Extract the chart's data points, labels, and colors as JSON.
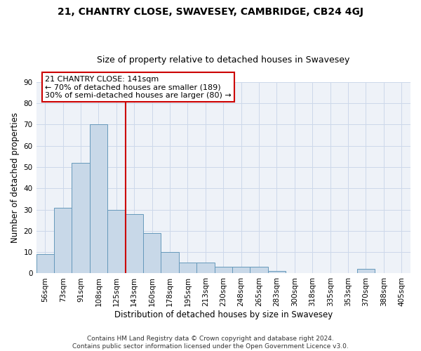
{
  "title1": "21, CHANTRY CLOSE, SWAVESEY, CAMBRIDGE, CB24 4GJ",
  "title2": "Size of property relative to detached houses in Swavesey",
  "xlabel": "Distribution of detached houses by size in Swavesey",
  "ylabel": "Number of detached properties",
  "bar_labels": [
    "56sqm",
    "73sqm",
    "91sqm",
    "108sqm",
    "125sqm",
    "143sqm",
    "160sqm",
    "178sqm",
    "195sqm",
    "213sqm",
    "230sqm",
    "248sqm",
    "265sqm",
    "283sqm",
    "300sqm",
    "318sqm",
    "335sqm",
    "353sqm",
    "370sqm",
    "388sqm",
    "405sqm"
  ],
  "bar_heights": [
    9,
    31,
    52,
    70,
    30,
    28,
    19,
    10,
    5,
    5,
    3,
    3,
    3,
    1,
    0,
    0,
    0,
    0,
    2,
    0,
    0
  ],
  "bar_color": "#c8d8e8",
  "bar_edge_color": "#6699bb",
  "red_line_x": 4.5,
  "red_line_color": "#cc0000",
  "annotation_line1": "21 CHANTRY CLOSE: 141sqm",
  "annotation_line2": "← 70% of detached houses are smaller (189)",
  "annotation_line3": "30% of semi-detached houses are larger (80) →",
  "annotation_box_color": "#ffffff",
  "annotation_box_edge_color": "#cc0000",
  "ylim": [
    0,
    90
  ],
  "yticks": [
    0,
    10,
    20,
    30,
    40,
    50,
    60,
    70,
    80,
    90
  ],
  "grid_color": "#ccd8ea",
  "background_color": "#eef2f8",
  "footer_line1": "Contains HM Land Registry data © Crown copyright and database right 2024.",
  "footer_line2": "Contains public sector information licensed under the Open Government Licence v3.0.",
  "title1_fontsize": 10,
  "title2_fontsize": 9,
  "xlabel_fontsize": 8.5,
  "ylabel_fontsize": 8.5,
  "tick_fontsize": 7.5,
  "annotation_fontsize": 8,
  "footer_fontsize": 6.5
}
